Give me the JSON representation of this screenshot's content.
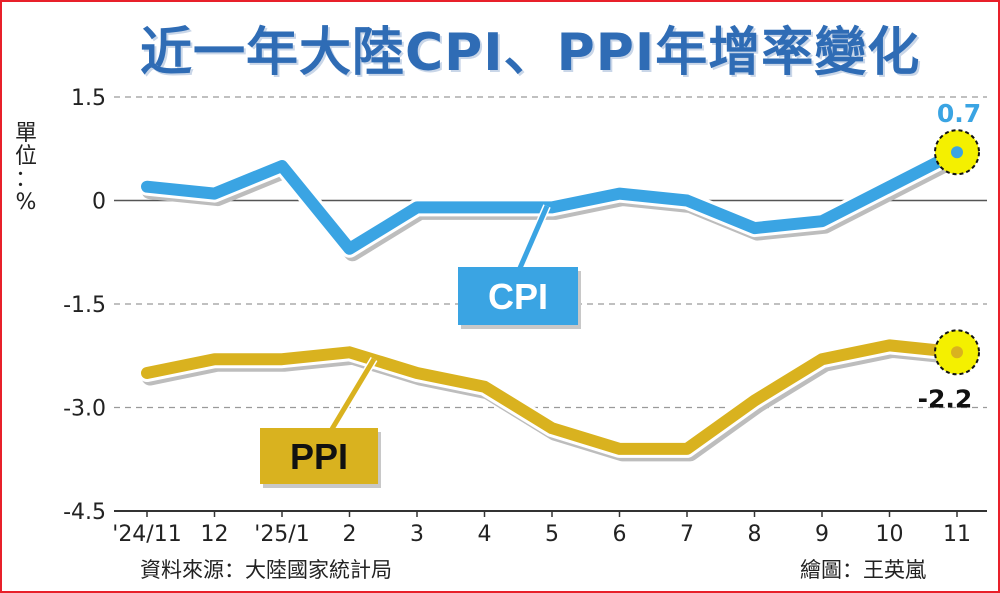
{
  "title": "近一年大陸CPI、PPI年增率變化",
  "unit_label": [
    "單",
    "位",
    "：",
    "%"
  ],
  "source": "資料來源：大陸國家統計局",
  "credit": "繪圖：王英嵐",
  "colors": {
    "cpi": "#3aa4e3",
    "ppi": "#d9b21f",
    "highlight": "#f4f000",
    "axis": "#333333",
    "grid": "#9a9a9a",
    "cpi_value_text": "#3aa4e3",
    "ppi_value_text": "#111111"
  },
  "chart_data": {
    "type": "line",
    "x": [
      "'24/11",
      "12",
      "'25/1",
      "2",
      "3",
      "4",
      "5",
      "6",
      "7",
      "8",
      "9",
      "10",
      "11"
    ],
    "yticks": [
      "1.5",
      "0",
      "-1.5",
      "-3.0",
      "-4.5"
    ],
    "ytick_values": [
      1.5,
      0,
      -1.5,
      -3.0,
      -4.5
    ],
    "ylim": [
      -4.5,
      1.5
    ],
    "grid": true,
    "series": [
      {
        "name": "CPI",
        "values": [
          0.2,
          0.1,
          0.5,
          -0.7,
          -0.1,
          -0.1,
          -0.1,
          0.1,
          0.0,
          -0.4,
          -0.3,
          0.2,
          0.7
        ],
        "end_label": "0.7"
      },
      {
        "name": "PPI",
        "values": [
          -2.5,
          -2.3,
          -2.3,
          -2.2,
          -2.5,
          -2.7,
          -3.3,
          -3.6,
          -3.6,
          -2.9,
          -2.3,
          -2.1,
          -2.2
        ],
        "end_label": "-2.2"
      }
    ]
  }
}
